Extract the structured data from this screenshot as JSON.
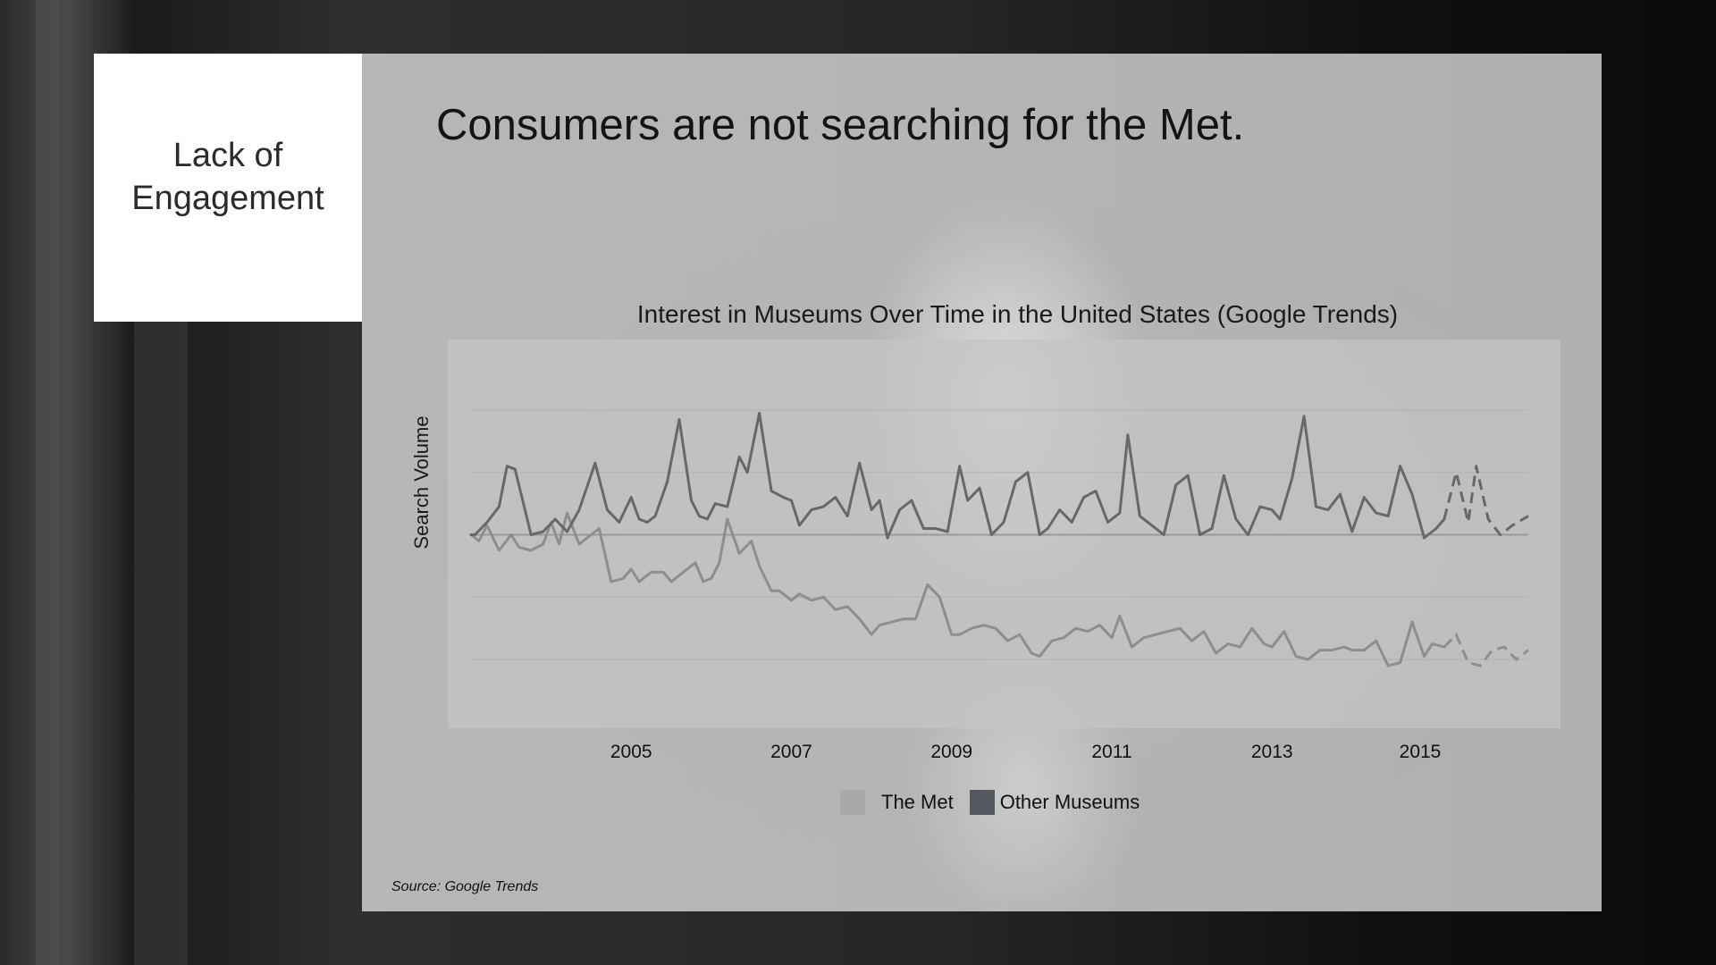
{
  "section": {
    "label": "Lack of Engagement"
  },
  "headline": "Consumers are not searching for the Met.",
  "source": "Source: Google Trends",
  "colors": {
    "panel": "#dadada",
    "plot_bg": "#c4c4c4",
    "met_line": "#8e8e8e",
    "other_line": "#686868",
    "met_swatch": "#a7aaa9",
    "other_swatch": "#545960"
  },
  "chart_data": {
    "type": "line",
    "title": "Interest in Museums Over Time in the United States (Google Trends)",
    "xlabel": "",
    "ylabel": "Search Volume",
    "x_ticks": [
      "2005",
      "2007",
      "2009",
      "2011",
      "2013",
      "2015"
    ],
    "x_tick_values": [
      2005.0,
      2007.0,
      2009.0,
      2011.0,
      2013.0,
      2014.85
    ],
    "xlim": [
      2003.0,
      2016.2
    ],
    "ylim": [
      0,
      100
    ],
    "grid": true,
    "legend_position": "bottom",
    "dashed_from_x": 2015.15,
    "series": [
      {
        "name": "The Met",
        "color": "#a7aaa9",
        "x": [
          2003.0,
          2003.1,
          2003.2,
          2003.35,
          2003.5,
          2003.6,
          2003.75,
          2003.9,
          2004.0,
          2004.1,
          2004.2,
          2004.35,
          2004.5,
          2004.6,
          2004.75,
          2004.9,
          2005.0,
          2005.1,
          2005.25,
          2005.4,
          2005.5,
          2005.65,
          2005.8,
          2005.9,
          2006.0,
          2006.1,
          2006.2,
          2006.35,
          2006.5,
          2006.6,
          2006.75,
          2006.85,
          2007.0,
          2007.1,
          2007.25,
          2007.4,
          2007.55,
          2007.7,
          2007.85,
          2008.0,
          2008.1,
          2008.25,
          2008.4,
          2008.55,
          2008.7,
          2008.85,
          2009.0,
          2009.1,
          2009.25,
          2009.4,
          2009.55,
          2009.7,
          2009.85,
          2010.0,
          2010.1,
          2010.25,
          2010.4,
          2010.55,
          2010.7,
          2010.85,
          2011.0,
          2011.1,
          2011.25,
          2011.4,
          2011.55,
          2011.7,
          2011.85,
          2012.0,
          2012.15,
          2012.3,
          2012.45,
          2012.6,
          2012.75,
          2012.9,
          2013.0,
          2013.15,
          2013.3,
          2013.45,
          2013.6,
          2013.75,
          2013.9,
          2014.0,
          2014.15,
          2014.3,
          2014.45,
          2014.6,
          2014.75,
          2014.9,
          2015.0,
          2015.15,
          2015.3,
          2015.45,
          2015.6,
          2015.75,
          2015.9,
          2016.05,
          2016.2
        ],
        "y": [
          50,
          48,
          53,
          45,
          50,
          46,
          45,
          47,
          54,
          47,
          57,
          47,
          50,
          52,
          35,
          36,
          39,
          35,
          38,
          38,
          35,
          38,
          41,
          35,
          36,
          41,
          55,
          44,
          48,
          40,
          32,
          32,
          29,
          31,
          29,
          30,
          26,
          27,
          23,
          18,
          21,
          22,
          23,
          23,
          34,
          30,
          18,
          18,
          20,
          21,
          20,
          16,
          18,
          12,
          11,
          16,
          17,
          20,
          19,
          21,
          17,
          24,
          14,
          17,
          18,
          19,
          20,
          16,
          19,
          12,
          15,
          14,
          20,
          15,
          14,
          19,
          11,
          10,
          13,
          13,
          14,
          13,
          13,
          16,
          8,
          9,
          22,
          11,
          15,
          14,
          18,
          9,
          8,
          13,
          14,
          10,
          13
        ]
      },
      {
        "name": "Other Museums",
        "color": "#545960",
        "x": [
          2003.0,
          2003.05,
          2003.2,
          2003.35,
          2003.45,
          2003.55,
          2003.75,
          2003.9,
          2004.05,
          2004.2,
          2004.35,
          2004.55,
          2004.7,
          2004.85,
          2005.0,
          2005.1,
          2005.2,
          2005.3,
          2005.45,
          2005.6,
          2005.75,
          2005.85,
          2005.95,
          2006.05,
          2006.2,
          2006.35,
          2006.45,
          2006.6,
          2006.75,
          2006.9,
          2007.0,
          2007.1,
          2007.25,
          2007.4,
          2007.55,
          2007.7,
          2007.85,
          2008.0,
          2008.1,
          2008.2,
          2008.35,
          2008.5,
          2008.65,
          2008.8,
          2008.95,
          2009.1,
          2009.2,
          2009.35,
          2009.5,
          2009.65,
          2009.8,
          2009.95,
          2010.1,
          2010.2,
          2010.35,
          2010.5,
          2010.65,
          2010.8,
          2010.95,
          2011.1,
          2011.2,
          2011.35,
          2011.5,
          2011.65,
          2011.8,
          2011.95,
          2012.1,
          2012.25,
          2012.4,
          2012.55,
          2012.7,
          2012.85,
          2013.0,
          2013.1,
          2013.25,
          2013.4,
          2013.55,
          2013.7,
          2013.85,
          2014.0,
          2014.15,
          2014.3,
          2014.45,
          2014.6,
          2014.75,
          2014.9,
          2015.05,
          2015.15,
          2015.3,
          2015.45,
          2015.55,
          2015.7,
          2015.85,
          2016.0,
          2016.2
        ],
        "y": [
          50,
          50,
          54,
          59,
          72,
          71,
          50,
          51,
          55,
          51,
          58,
          73,
          58,
          54,
          62,
          55,
          54,
          56,
          67,
          87,
          61,
          56,
          55,
          60,
          59,
          75,
          70,
          89,
          64,
          62,
          61,
          53,
          58,
          59,
          62,
          56,
          73,
          58,
          61,
          49,
          58,
          61,
          52,
          52,
          51,
          72,
          61,
          65,
          50,
          54,
          67,
          70,
          50,
          52,
          58,
          54,
          62,
          64,
          54,
          57,
          82,
          56,
          53,
          50,
          66,
          69,
          50,
          52,
          69,
          55,
          50,
          59,
          58,
          55,
          68,
          88,
          59,
          58,
          63,
          51,
          62,
          57,
          56,
          72,
          63,
          49,
          52,
          55,
          70,
          54,
          72,
          55,
          50,
          53,
          56
        ]
      }
    ]
  }
}
